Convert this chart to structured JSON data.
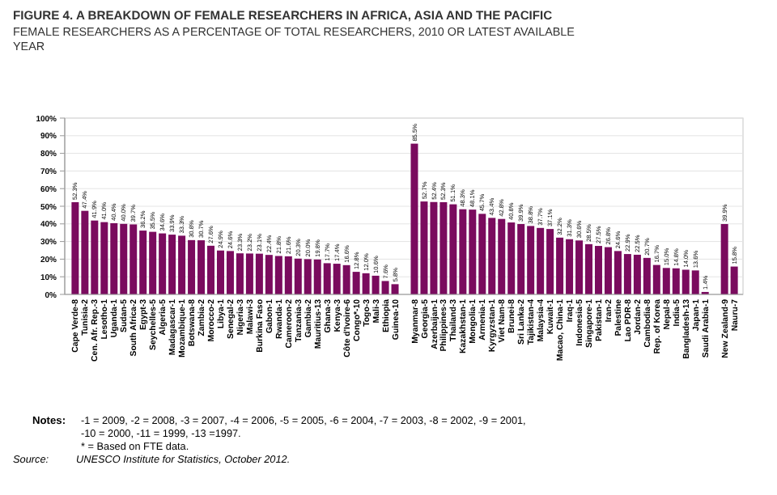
{
  "chart_data": {
    "type": "bar",
    "title": "FIGURE 4.  A BREAKDOWN OF FEMALE RESEARCHERS IN AFRICA, ASIA AND THE PACIFIC",
    "subtitle": "FEMALE RESEARCHERS AS A PERCENTAGE OF TOTAL RESEARCHERS, 2010 OR LATEST AVAILABLE YEAR",
    "categories": [
      "Cape Verde-8",
      "Tunisia-2",
      "Cen. Afr. Rep.-3",
      "Lesotho-1",
      "Uganda-1",
      "Sudan-5",
      "South Africa-2",
      "Egypt-3",
      "Seychelles-5",
      "Algeria-5",
      "Madagascar-1",
      "Mozambique-1",
      "Botswana-8",
      "Zambia-2",
      "Morocco-2",
      "Libya-1",
      "Senegal-2",
      "Nigeria-3",
      "Malawi-3",
      "Burkina Faso",
      "Gabon-1",
      "Rwanda-1",
      "Cameroon-2",
      "Tanzania-3",
      "Gambia-2",
      "Mauritius-13",
      "Ghana-3",
      "Kenya-3",
      "Côte d'Ivoire-6",
      "Congo*-10",
      "Togo-3",
      "Mali-3",
      "Ethiopia",
      "Guinea-10",
      null,
      "Myanmar-8",
      "Georgia-5",
      "Azerbaijan-1",
      "Philippines-3",
      "Thailand-3",
      "Kazakhstan-1",
      "Mongolia-1",
      "Armenia-1",
      "Kyrgyzstan-1",
      "Viet Nam-8",
      "Brunei-8",
      "Sri Lanka-2",
      "Tajikistan-4",
      "Malaysia-4",
      "Kuwait-1",
      "Macao, China-1",
      "Iraq-1",
      "Indonesia-5",
      "Singapore-1",
      "Pakistan-1",
      "Iran-2",
      "Palestine",
      "Lao PDR-8",
      "Jordan-2",
      "Cambodia-8",
      "Rep. of Korea",
      "Nepal-8",
      "India-5",
      "Bangladesh-13",
      "Japan-1",
      "Saudi Arabia-1",
      null,
      "New Zealand-9",
      "Nauru-7"
    ],
    "values": [
      52.3,
      47.4,
      41.9,
      41.0,
      40.4,
      40.0,
      39.7,
      36.2,
      35.5,
      34.6,
      33.9,
      33.3,
      30.8,
      30.7,
      27.6,
      24.9,
      24.6,
      23.3,
      23.2,
      23.1,
      22.4,
      21.8,
      21.6,
      20.3,
      20.0,
      19.8,
      17.7,
      17.4,
      16.6,
      12.8,
      12.0,
      10.6,
      7.6,
      5.8,
      null,
      85.5,
      52.7,
      52.4,
      52.3,
      51.1,
      48.3,
      48.1,
      45.7,
      43.4,
      42.8,
      40.8,
      39.9,
      38.8,
      37.7,
      37.1,
      32.2,
      31.3,
      30.6,
      28.5,
      27.5,
      26.8,
      24.6,
      22.9,
      22.5,
      20.7,
      16.7,
      15.0,
      14.8,
      14.0,
      13.6,
      1.4,
      null,
      39.9,
      15.8
    ],
    "value_labels": [
      "52.3%",
      "47.4%",
      "41.9%",
      "41.0%",
      "40.4%",
      "40.0%",
      "39.7%",
      "36.2%",
      "35.5%",
      "34.6%",
      "33.9%",
      "33.3%",
      "30.8%",
      "30.7%",
      "27.6%",
      "24.9%",
      "24.6%",
      "23.3%",
      "23.2%",
      "23.1%",
      "22.4%",
      "21.8%",
      "21.6%",
      "20.3%",
      "20.0%",
      "19.8%",
      "17.7%",
      "17.4%",
      "16.6%",
      "12.8%",
      "12.0%",
      "10.6%",
      "7.6%",
      "5.8%",
      null,
      "85.5%",
      "52.7%",
      "52.4%",
      "52.3%",
      "51.1%",
      "48.3%",
      "48.1%",
      "45.7%",
      "43.4%",
      "42.8%",
      "40.8%",
      "39.9%",
      "38.8%",
      "37.7%",
      "37.1%",
      "32.2%",
      "31.3%",
      "30.6%",
      "28.5%",
      "27.5%",
      "26.8%",
      "24.6%",
      "22.9%",
      "22.5%",
      "20.7%",
      "16.7%",
      "15.0%",
      "14.8%",
      "14.0%",
      "13.6%",
      "1.4%",
      null,
      "39.9%",
      "15.8%"
    ],
    "color": "#7a0b5e",
    "ylim": [
      0,
      100
    ],
    "yticks": [
      {
        "value": 0,
        "label": "0%"
      },
      {
        "value": 10,
        "label": "10%"
      },
      {
        "value": 20,
        "label": "20%"
      },
      {
        "value": 30,
        "label": "30%"
      },
      {
        "value": 40,
        "label": "40%"
      },
      {
        "value": 50,
        "label": "50%"
      },
      {
        "value": 60,
        "label": "60%"
      },
      {
        "value": 70,
        "label": "70%"
      },
      {
        "value": 80,
        "label": "80%"
      },
      {
        "value": 90,
        "label": "90%"
      },
      {
        "value": 100,
        "label": "100%"
      }
    ],
    "grid": "y",
    "annotations": [
      "Notes:",
      "-1 = 2009, -2 = 2008, -3 = 2007, -4 = 2006, -5 = 2005, -6 = 2004, -7 = 2003, -8 = 2002, -9 = 2001, -10 = 2000, -11 = 1999, -13 =1997.",
      "* = Based on FTE data.",
      "Source:",
      "UNESCO Institute for Statistics, October 2012."
    ]
  }
}
